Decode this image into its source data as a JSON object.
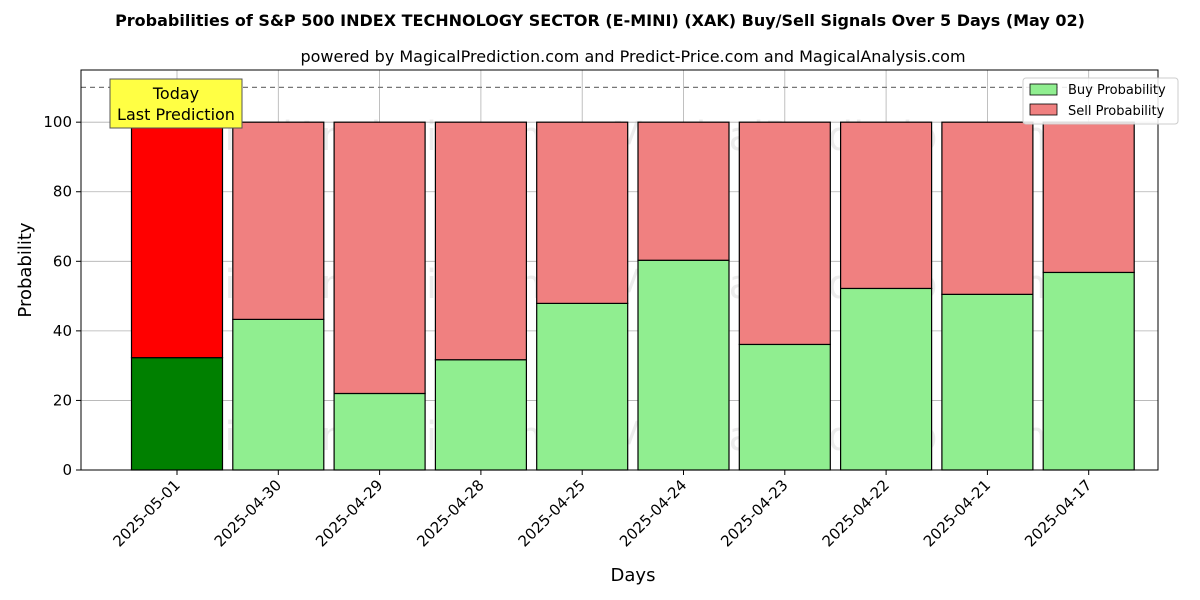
{
  "chart_data": {
    "type": "bar",
    "title": "Probabilities of S&P 500 INDEX TECHNOLOGY SECTOR (E-MINI) (XAK) Buy/Sell Signals Over 5 Days (May 02)",
    "subtitle": "powered by MagicalPrediction.com and Predict-Price.com and MagicalAnalysis.com",
    "xlabel": "Days",
    "ylabel": "Probability",
    "ylim": [
      0,
      115
    ],
    "yticks": [
      0,
      20,
      40,
      60,
      80,
      100
    ],
    "reference_line": 110,
    "grid": true,
    "legend_position": "top-right",
    "categories": [
      "2025-05-01",
      "2025-04-30",
      "2025-04-29",
      "2025-04-28",
      "2025-04-25",
      "2025-04-24",
      "2025-04-23",
      "2025-04-22",
      "2025-04-21",
      "2025-04-17"
    ],
    "series": [
      {
        "name": "Buy Probability",
        "values": [
          32.3,
          43.3,
          22.0,
          31.7,
          47.9,
          60.3,
          36.1,
          52.2,
          50.5,
          56.8
        ],
        "color": "#90ee90",
        "highlight_color": "#008000"
      },
      {
        "name": "Sell Probability",
        "values": [
          67.7,
          56.7,
          78.0,
          68.3,
          52.1,
          39.7,
          63.9,
          47.8,
          49.5,
          43.2
        ],
        "color": "#f08080",
        "highlight_color": "#ff0000"
      }
    ],
    "annotation": {
      "lines": [
        "Today",
        "Last Prediction"
      ],
      "background": "#ffff44"
    },
    "watermarks": [
      "MagicalAnalysis.com",
      "MagicalPrediction.com"
    ]
  }
}
